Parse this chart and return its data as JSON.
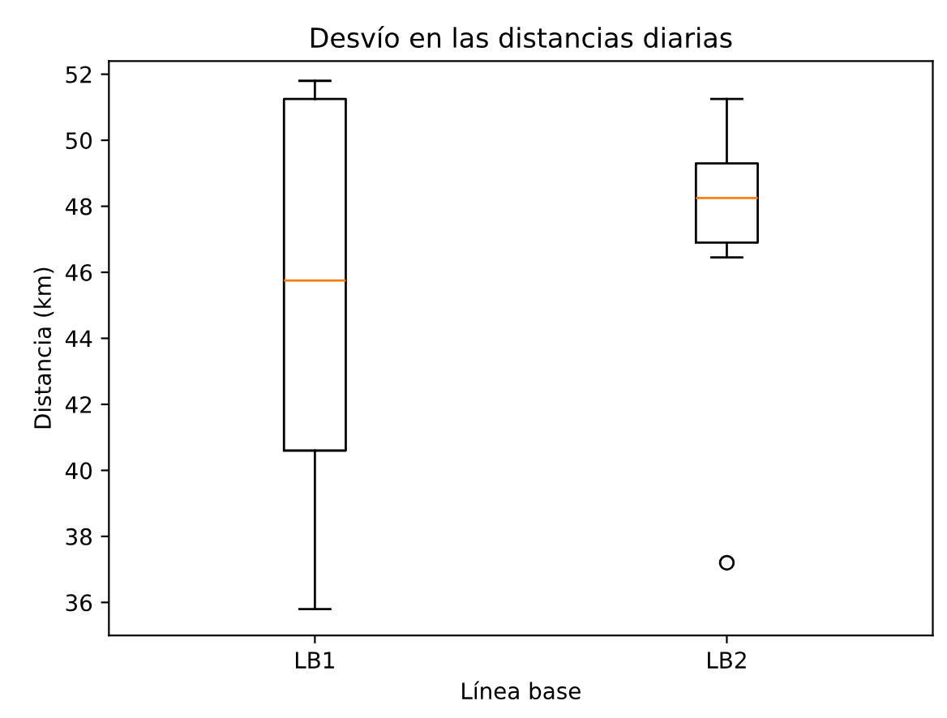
{
  "chart_data": {
    "type": "box",
    "title": "Desvío en las distancias diarias",
    "xlabel": "Línea base",
    "ylabel": "Distancia (km)",
    "categories": [
      "LB1",
      "LB2"
    ],
    "boxes": [
      {
        "low": 35.8,
        "q1": 40.6,
        "median": 45.75,
        "q3": 51.25,
        "high": 51.8
      },
      {
        "low": 46.45,
        "q1": 46.9,
        "median": 48.25,
        "q3": 49.3,
        "high": 51.25,
        "outliers": [
          37.2
        ]
      }
    ],
    "color": "#000000",
    "ylim": [
      35.0,
      52.4
    ],
    "yticks": [
      36,
      38,
      40,
      42,
      44,
      46,
      48,
      50,
      52
    ],
    "grid": false
  }
}
